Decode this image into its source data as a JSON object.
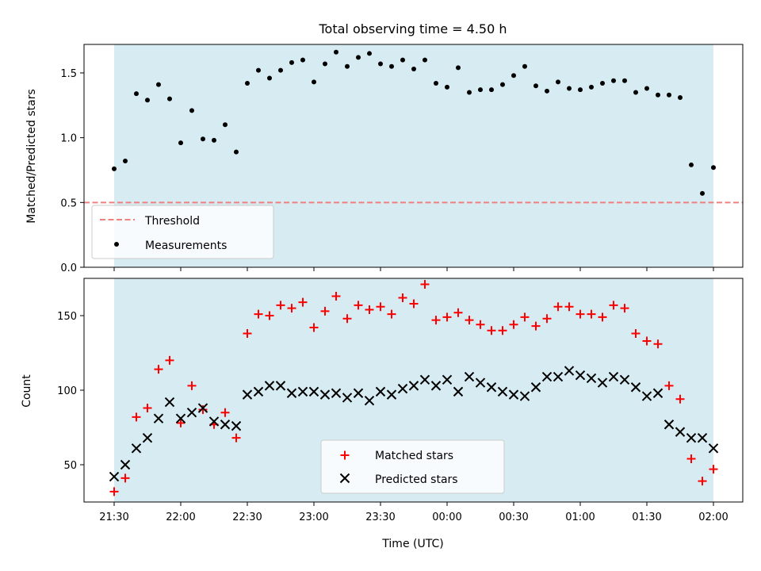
{
  "chart_data": [
    {
      "type": "scatter",
      "title": "Total observing time = 4.50 h",
      "ylabel": "Matched/Predicted stars",
      "xlim": [
        "21:30",
        "02:00"
      ],
      "ylim": [
        0.0,
        1.72
      ],
      "yticks": [
        0.0,
        0.5,
        1.0,
        1.5
      ],
      "shaded_span": [
        "21:30",
        "02:00"
      ],
      "shade_color": "#add8e6",
      "threshold": {
        "name": "Threshold",
        "value": 0.5,
        "color": "#f08080",
        "style": "dashed"
      },
      "legend": {
        "placement": "lower-left",
        "entries": [
          "Threshold",
          "Measurements"
        ]
      },
      "series": [
        {
          "name": "Measurements",
          "color": "#000000",
          "marker": "dot",
          "points": [
            [
              "21:30",
              0.76
            ],
            [
              "21:35",
              0.82
            ],
            [
              "21:40",
              1.34
            ],
            [
              "21:45",
              1.29
            ],
            [
              "21:50",
              1.41
            ],
            [
              "21:55",
              1.3
            ],
            [
              "22:00",
              0.96
            ],
            [
              "22:05",
              1.21
            ],
            [
              "22:10",
              0.99
            ],
            [
              "22:15",
              0.98
            ],
            [
              "22:20",
              1.1
            ],
            [
              "22:25",
              0.89
            ],
            [
              "22:30",
              1.42
            ],
            [
              "22:35",
              1.52
            ],
            [
              "22:40",
              1.46
            ],
            [
              "22:45",
              1.52
            ],
            [
              "22:50",
              1.58
            ],
            [
              "22:55",
              1.6
            ],
            [
              "23:00",
              1.43
            ],
            [
              "23:05",
              1.57
            ],
            [
              "23:10",
              1.66
            ],
            [
              "23:15",
              1.55
            ],
            [
              "23:20",
              1.62
            ],
            [
              "23:25",
              1.65
            ],
            [
              "23:30",
              1.57
            ],
            [
              "23:35",
              1.55
            ],
            [
              "23:40",
              1.6
            ],
            [
              "23:45",
              1.53
            ],
            [
              "23:50",
              1.6
            ],
            [
              "23:55",
              1.42
            ],
            [
              "00:00",
              1.39
            ],
            [
              "00:05",
              1.54
            ],
            [
              "00:10",
              1.35
            ],
            [
              "00:15",
              1.37
            ],
            [
              "00:20",
              1.37
            ],
            [
              "00:25",
              1.41
            ],
            [
              "00:30",
              1.48
            ],
            [
              "00:35",
              1.55
            ],
            [
              "00:40",
              1.4
            ],
            [
              "00:45",
              1.36
            ],
            [
              "00:50",
              1.43
            ],
            [
              "00:55",
              1.38
            ],
            [
              "01:00",
              1.37
            ],
            [
              "01:05",
              1.39
            ],
            [
              "01:10",
              1.42
            ],
            [
              "01:15",
              1.44
            ],
            [
              "01:20",
              1.44
            ],
            [
              "01:25",
              1.35
            ],
            [
              "01:30",
              1.38
            ],
            [
              "01:35",
              1.33
            ],
            [
              "01:40",
              1.33
            ],
            [
              "01:45",
              1.31
            ],
            [
              "01:50",
              0.79
            ],
            [
              "01:55",
              0.57
            ],
            [
              "02:00",
              0.77
            ]
          ]
        }
      ]
    },
    {
      "type": "scatter",
      "xlabel": "Time (UTC)",
      "ylabel": "Count",
      "xlim": [
        "21:30",
        "02:00"
      ],
      "ylim": [
        25,
        175
      ],
      "yticks": [
        50,
        100,
        150
      ],
      "xticks": [
        "21:30",
        "22:00",
        "22:30",
        "23:00",
        "23:30",
        "00:00",
        "00:30",
        "01:00",
        "01:30",
        "02:00"
      ],
      "shaded_span": [
        "21:30",
        "02:00"
      ],
      "shade_color": "#add8e6",
      "legend": {
        "placement": "lower-center",
        "entries": [
          "Matched stars",
          "Predicted stars"
        ]
      },
      "series": [
        {
          "name": "Matched stars",
          "color": "#ff0000",
          "marker": "plus",
          "points": [
            [
              "21:30",
              32
            ],
            [
              "21:35",
              41
            ],
            [
              "21:40",
              82
            ],
            [
              "21:45",
              88
            ],
            [
              "21:50",
              114
            ],
            [
              "21:55",
              120
            ],
            [
              "22:00",
              78
            ],
            [
              "22:05",
              103
            ],
            [
              "22:10",
              87
            ],
            [
              "22:15",
              77
            ],
            [
              "22:20",
              85
            ],
            [
              "22:25",
              68
            ],
            [
              "22:30",
              138
            ],
            [
              "22:35",
              151
            ],
            [
              "22:40",
              150
            ],
            [
              "22:45",
              157
            ],
            [
              "22:50",
              155
            ],
            [
              "22:55",
              159
            ],
            [
              "23:00",
              142
            ],
            [
              "23:05",
              153
            ],
            [
              "23:10",
              163
            ],
            [
              "23:15",
              148
            ],
            [
              "23:20",
              157
            ],
            [
              "23:25",
              154
            ],
            [
              "23:30",
              156
            ],
            [
              "23:35",
              151
            ],
            [
              "23:40",
              162
            ],
            [
              "23:45",
              158
            ],
            [
              "23:50",
              171
            ],
            [
              "23:55",
              147
            ],
            [
              "00:00",
              149
            ],
            [
              "00:05",
              152
            ],
            [
              "00:10",
              147
            ],
            [
              "00:15",
              144
            ],
            [
              "00:20",
              140
            ],
            [
              "00:25",
              140
            ],
            [
              "00:30",
              144
            ],
            [
              "00:35",
              149
            ],
            [
              "00:40",
              143
            ],
            [
              "00:45",
              148
            ],
            [
              "00:50",
              156
            ],
            [
              "00:55",
              156
            ],
            [
              "01:00",
              151
            ],
            [
              "01:05",
              151
            ],
            [
              "01:10",
              149
            ],
            [
              "01:15",
              157
            ],
            [
              "01:20",
              155
            ],
            [
              "01:25",
              138
            ],
            [
              "01:30",
              133
            ],
            [
              "01:35",
              131
            ],
            [
              "01:40",
              103
            ],
            [
              "01:45",
              94
            ],
            [
              "01:50",
              54
            ],
            [
              "01:55",
              39
            ],
            [
              "02:00",
              47
            ]
          ]
        },
        {
          "name": "Predicted stars",
          "color": "#000000",
          "marker": "x",
          "points": [
            [
              "21:30",
              42
            ],
            [
              "21:35",
              50
            ],
            [
              "21:40",
              61
            ],
            [
              "21:45",
              68
            ],
            [
              "21:50",
              81
            ],
            [
              "21:55",
              92
            ],
            [
              "22:00",
              81
            ],
            [
              "22:05",
              85
            ],
            [
              "22:10",
              88
            ],
            [
              "22:15",
              79
            ],
            [
              "22:20",
              77
            ],
            [
              "22:25",
              76
            ],
            [
              "22:30",
              97
            ],
            [
              "22:35",
              99
            ],
            [
              "22:40",
              103
            ],
            [
              "22:45",
              103
            ],
            [
              "22:50",
              98
            ],
            [
              "22:55",
              99
            ],
            [
              "23:00",
              99
            ],
            [
              "23:05",
              97
            ],
            [
              "23:10",
              98
            ],
            [
              "23:15",
              95
            ],
            [
              "23:20",
              98
            ],
            [
              "23:25",
              93
            ],
            [
              "23:30",
              99
            ],
            [
              "23:35",
              97
            ],
            [
              "23:40",
              101
            ],
            [
              "23:45",
              103
            ],
            [
              "23:50",
              107
            ],
            [
              "23:55",
              103
            ],
            [
              "00:00",
              107
            ],
            [
              "00:05",
              99
            ],
            [
              "00:10",
              109
            ],
            [
              "00:15",
              105
            ],
            [
              "00:20",
              102
            ],
            [
              "00:25",
              99
            ],
            [
              "00:30",
              97
            ],
            [
              "00:35",
              96
            ],
            [
              "00:40",
              102
            ],
            [
              "00:45",
              109
            ],
            [
              "00:50",
              109
            ],
            [
              "00:55",
              113
            ],
            [
              "01:00",
              110
            ],
            [
              "01:05",
              108
            ],
            [
              "01:10",
              105
            ],
            [
              "01:15",
              109
            ],
            [
              "01:20",
              107
            ],
            [
              "01:25",
              102
            ],
            [
              "01:30",
              96
            ],
            [
              "01:35",
              98
            ],
            [
              "01:40",
              77
            ],
            [
              "01:45",
              72
            ],
            [
              "01:50",
              68
            ],
            [
              "01:55",
              68
            ],
            [
              "02:00",
              61
            ]
          ]
        }
      ]
    }
  ]
}
